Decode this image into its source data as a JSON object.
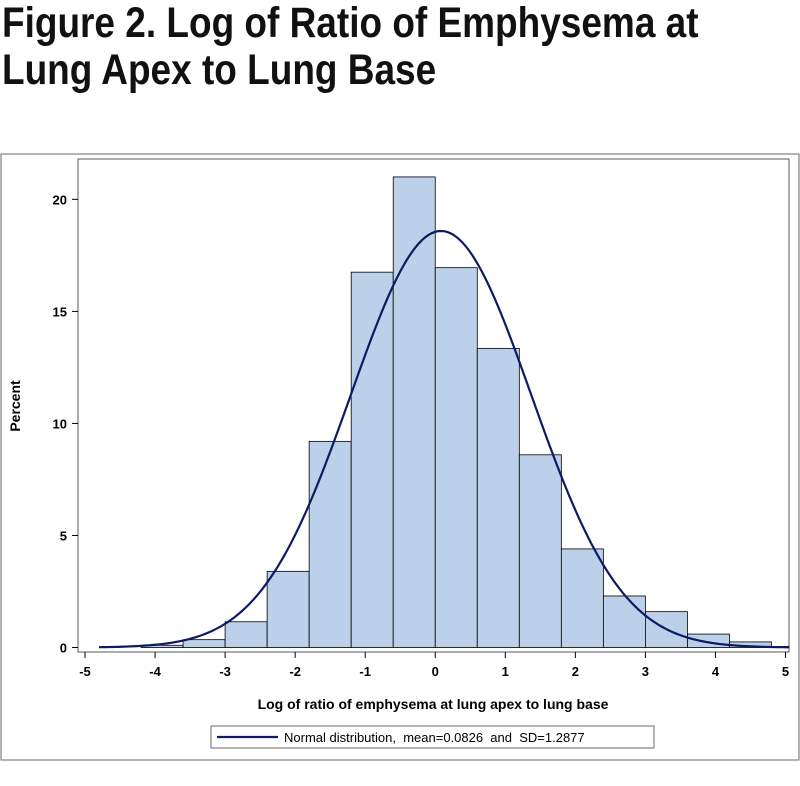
{
  "figure": {
    "title_line1": "Figure 2. Log of Ratio of Emphysema at",
    "title_line2": "Lung Apex to Lung Base"
  },
  "chart_data": {
    "type": "bar",
    "subtype": "histogram",
    "xlabel": "Log of ratio of emphysema at lung apex to lung base",
    "ylabel": "Percent",
    "xlim": [
      -5.1,
      5.05
    ],
    "ylim": [
      -0.2,
      21.8
    ],
    "x_ticks": [
      -5,
      -4,
      -3,
      -2,
      -1,
      0,
      1,
      2,
      3,
      4,
      5
    ],
    "y_ticks": [
      0,
      5,
      10,
      15,
      20
    ],
    "bin_width": 0.6,
    "bins": [
      {
        "start": -4.8,
        "end": -4.2,
        "value": 0.0
      },
      {
        "start": -4.2,
        "end": -3.6,
        "value": 0.1
      },
      {
        "start": -3.6,
        "end": -3.0,
        "value": 0.35
      },
      {
        "start": -3.0,
        "end": -2.4,
        "value": 1.15
      },
      {
        "start": -2.4,
        "end": -1.8,
        "value": 3.4
      },
      {
        "start": -1.8,
        "end": -1.2,
        "value": 9.2
      },
      {
        "start": -1.2,
        "end": -0.6,
        "value": 16.75
      },
      {
        "start": -0.6,
        "end": 0.0,
        "value": 21.0
      },
      {
        "start": 0.0,
        "end": 0.6,
        "value": 16.95
      },
      {
        "start": 0.6,
        "end": 1.2,
        "value": 13.35
      },
      {
        "start": 1.2,
        "end": 1.8,
        "value": 8.6
      },
      {
        "start": 1.8,
        "end": 2.4,
        "value": 4.4
      },
      {
        "start": 2.4,
        "end": 3.0,
        "value": 2.3
      },
      {
        "start": 3.0,
        "end": 3.6,
        "value": 1.6
      },
      {
        "start": 3.6,
        "end": 4.2,
        "value": 0.6
      },
      {
        "start": 4.2,
        "end": 4.8,
        "value": 0.25
      },
      {
        "start": 4.8,
        "end": 5.4,
        "value": 0.05
      }
    ],
    "curve": {
      "name": "Normal distribution,  mean=0.0826  and  SD=1.2877",
      "mean": 0.0826,
      "sd": 1.2877,
      "x_range": [
        -4.8,
        5.05
      ]
    },
    "legend_position": "bottom-center",
    "grid": false,
    "colors": {
      "bar_fill": "#bcd1e9",
      "bar_stroke": "#000000",
      "curve": "#0e1a64",
      "frame": "#5a5a5a"
    }
  }
}
